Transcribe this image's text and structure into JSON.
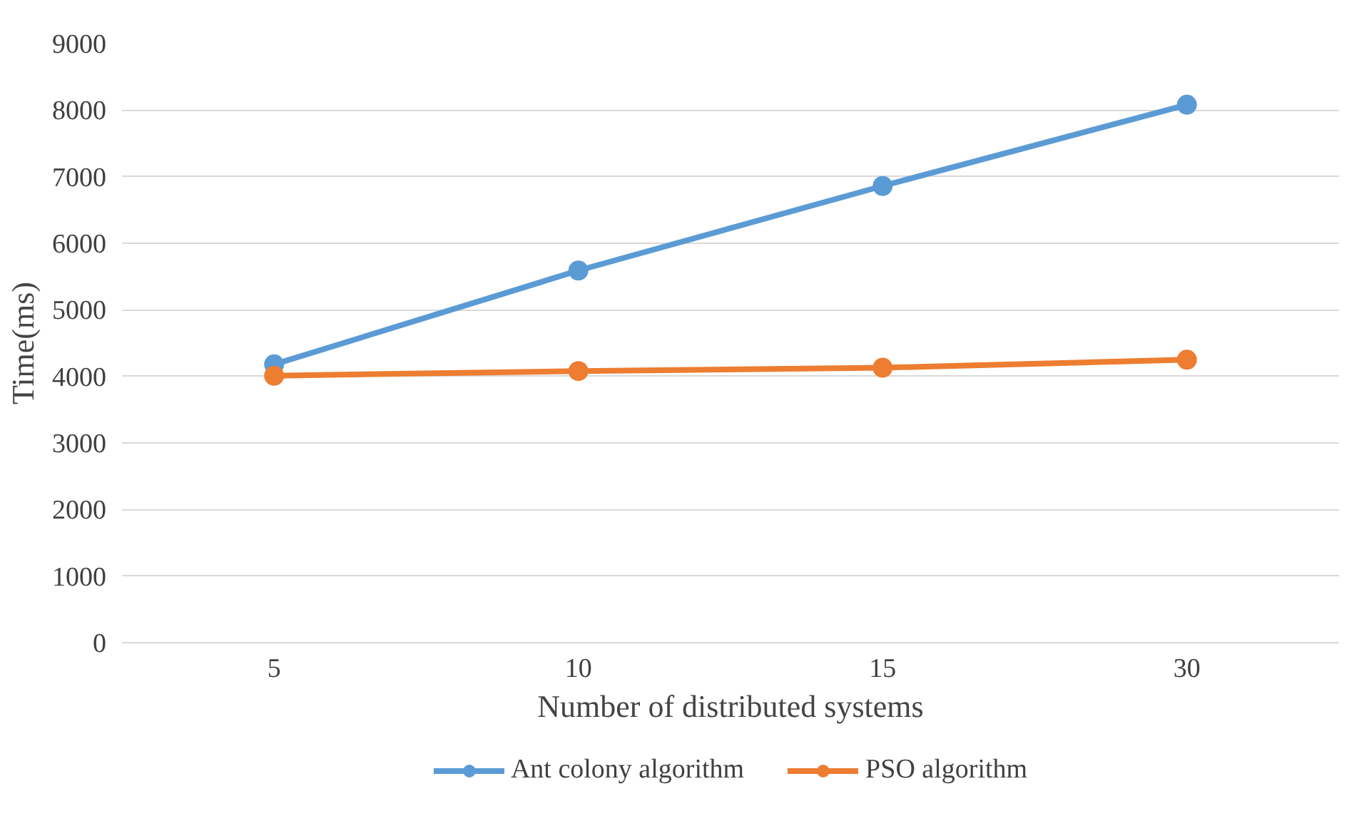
{
  "chart_data": {
    "type": "line",
    "xlabel": "Number of distributed systems",
    "ylabel": "Time(ms)",
    "categories": [
      "5",
      "10",
      "15",
      "30"
    ],
    "series": [
      {
        "name": "Ant colony algorithm",
        "color": "#5b9bd5",
        "values": [
          4180,
          5590,
          6860,
          8080
        ]
      },
      {
        "name": "PSO algorithm",
        "color": "#ed7d31",
        "values": [
          4010,
          4080,
          4130,
          4250
        ]
      }
    ],
    "ylim": [
      0,
      9000
    ],
    "yticks": [
      0,
      1000,
      2000,
      3000,
      4000,
      5000,
      6000,
      7000,
      8000,
      9000
    ],
    "grid": "y",
    "legend": "bottom",
    "marker": "circle",
    "line_style": "solid"
  }
}
